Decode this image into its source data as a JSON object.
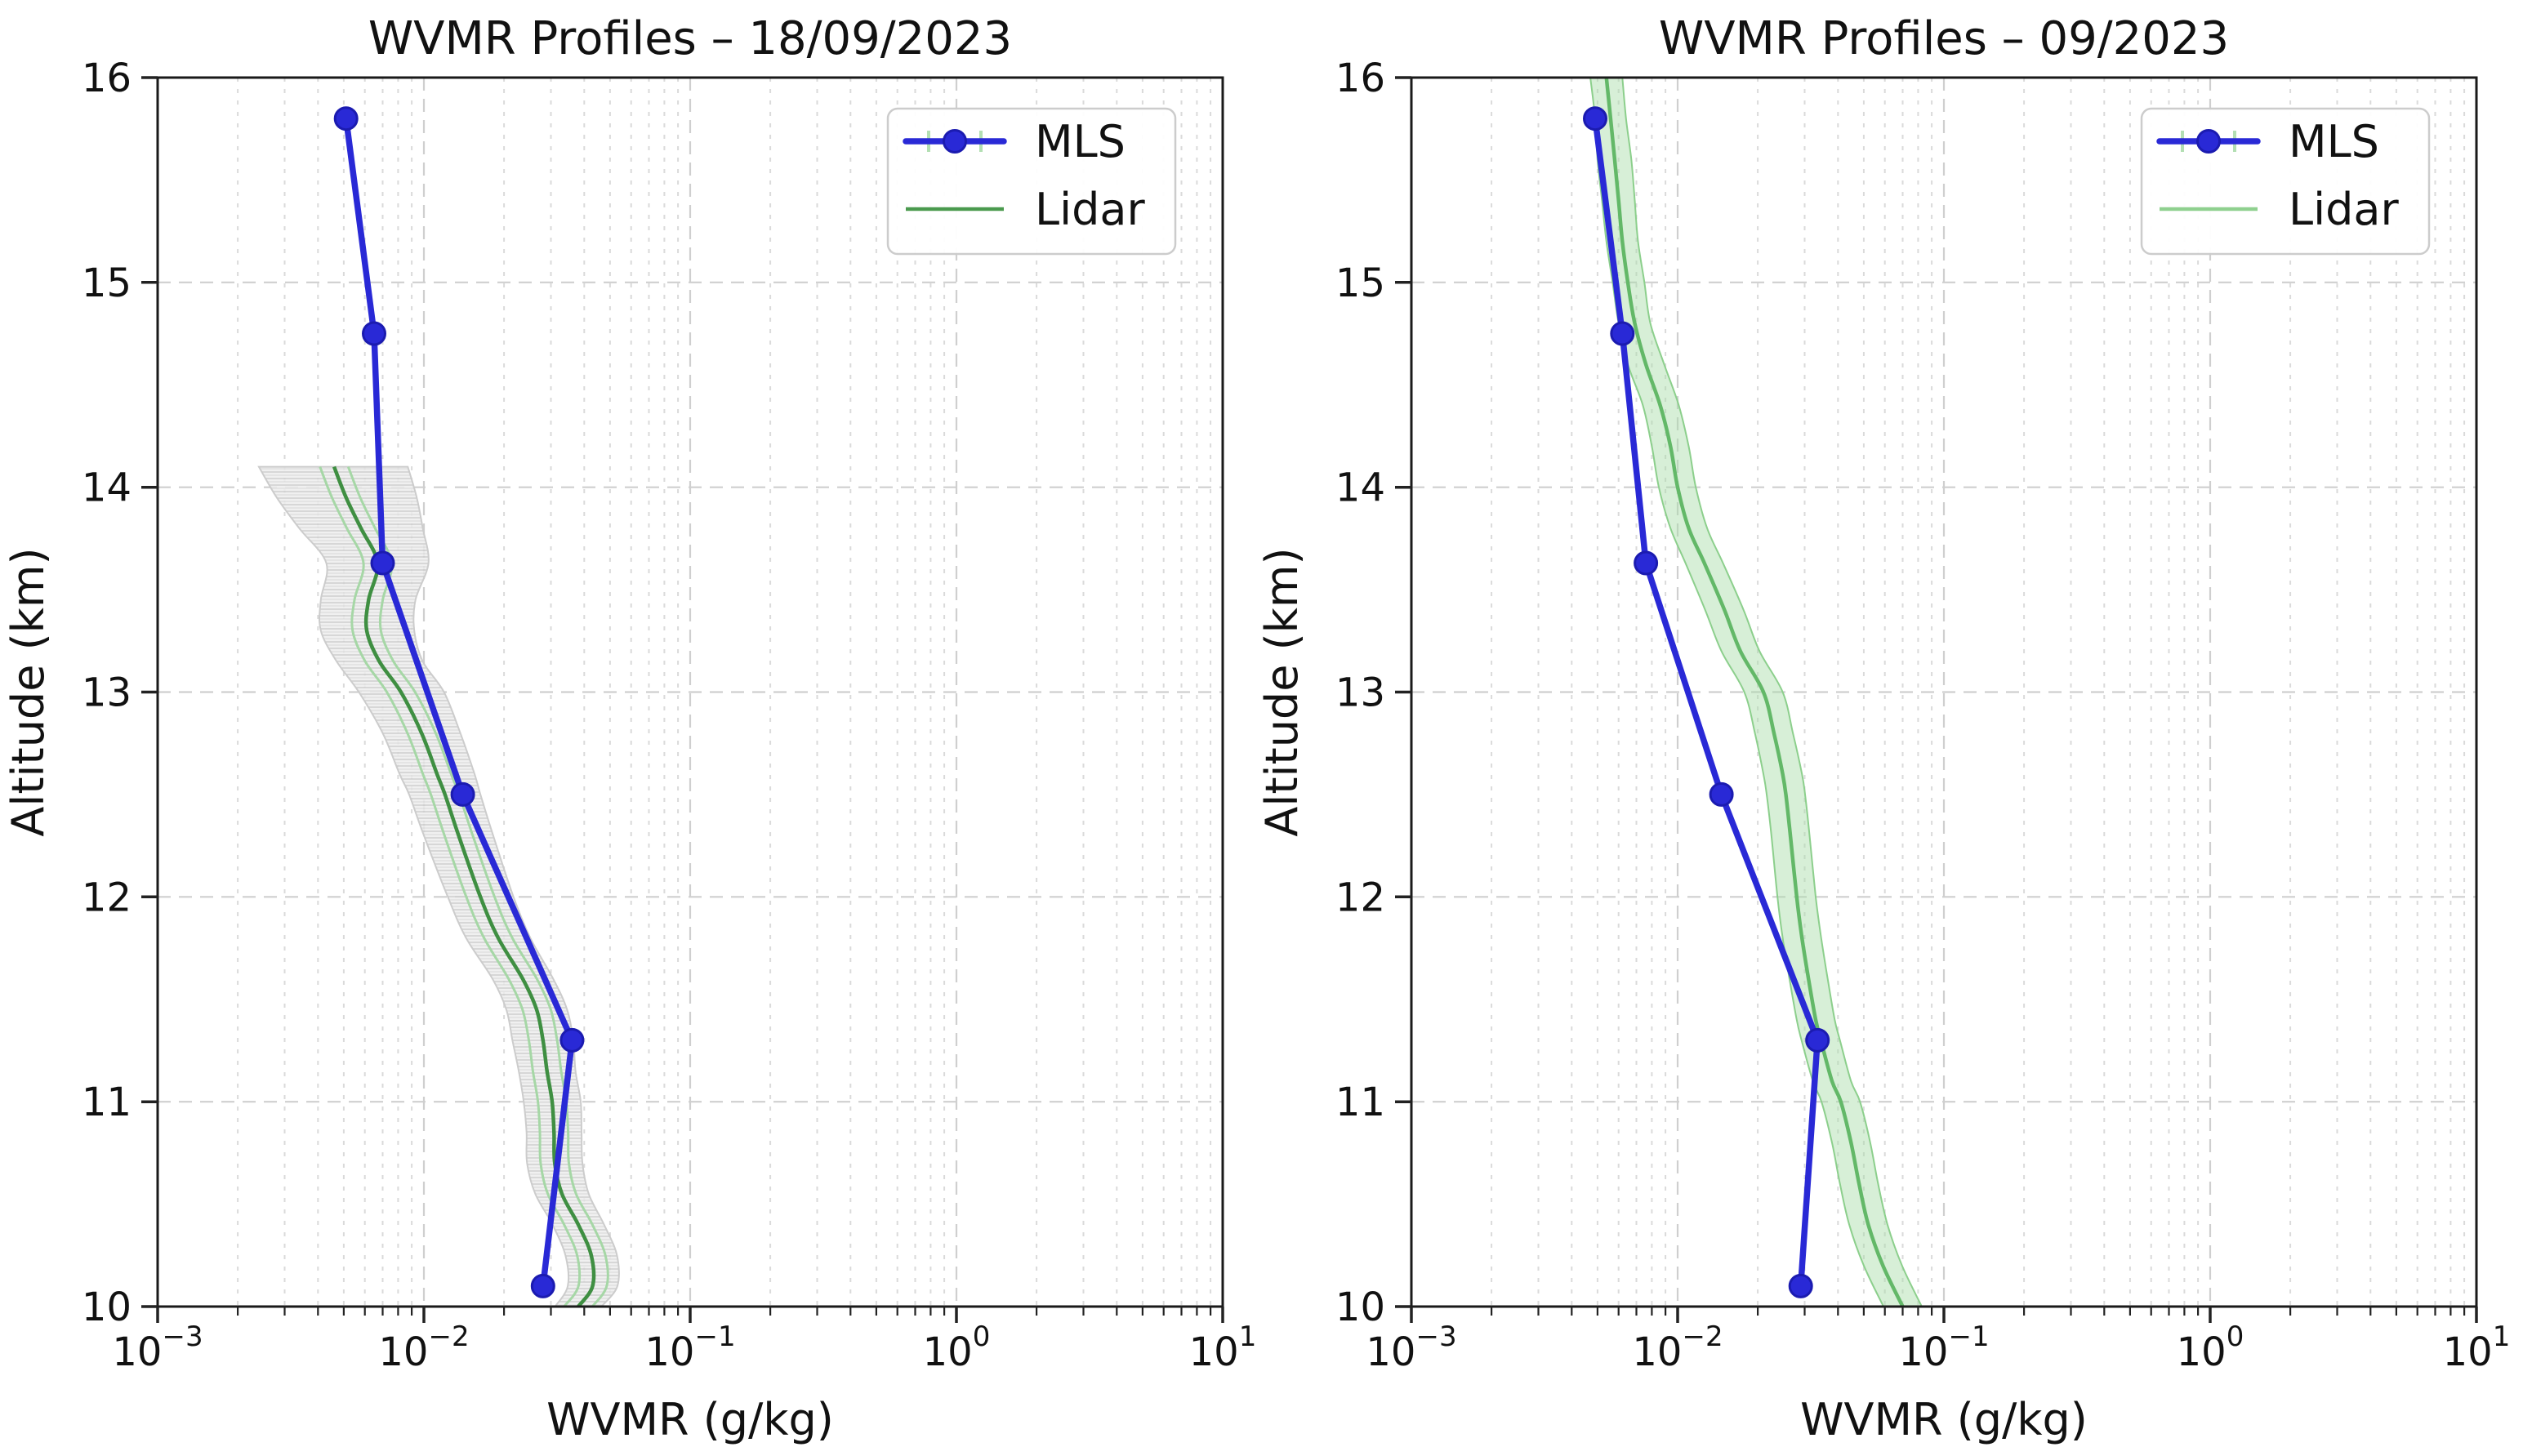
{
  "figure": {
    "background": "#ffffff",
    "text_color": "#111111",
    "spine_color": "#1a1a1a",
    "grid_major_color": "#cfcfcf",
    "grid_minor_color": "#dadada"
  },
  "chart_data": [
    {
      "type": "line",
      "title": "WVMR Profiles – 18/09/2023",
      "xlabel": "WVMR (g/kg)",
      "ylabel": "Altitude (km)",
      "x_scale": "log",
      "xlim": [
        0.001,
        10
      ],
      "ylim": [
        10,
        16
      ],
      "x_tick_exponents": [
        -3,
        -2,
        -1,
        0,
        1
      ],
      "y_ticks": [
        10,
        11,
        12,
        13,
        14,
        15,
        16
      ],
      "grid": true,
      "legend": {
        "position": "upper right",
        "entries": [
          {
            "label": "MLS",
            "sample": "errorbar",
            "color": "#2929d6",
            "cap_color": "#b3dfb3"
          },
          {
            "label": "Lidar",
            "sample": "line",
            "color": "#4a9a4e"
          }
        ]
      },
      "series": [
        {
          "name": "MLS",
          "type": "line+marker",
          "color": "#2929d6",
          "marker": "circle",
          "marker_edge": "#1b1bb0",
          "altitude_km": [
            15.8,
            14.75,
            13.63,
            12.5,
            11.3,
            10.1
          ],
          "wvmr_g_per_kg": [
            0.0051,
            0.0065,
            0.007,
            0.014,
            0.036,
            0.028
          ]
        },
        {
          "name": "Lidar",
          "type": "line+band",
          "color": "#3f8f42",
          "legend_color": "#4a9a4e",
          "inner_band_factor": 1.13,
          "inner_band_color": "#a6d7a6",
          "band_fill": "#ededed",
          "band_edge": "#cccccc",
          "band_hatched": true,
          "band_opacity": 0.85,
          "altitude_km": [
            14.1,
            13.95,
            13.8,
            13.63,
            13.45,
            13.3,
            13.15,
            13.0,
            12.8,
            12.6,
            12.5,
            12.3,
            12.0,
            11.8,
            11.6,
            11.45,
            11.3,
            11.15,
            11.0,
            10.85,
            10.7,
            10.55,
            10.4,
            10.25,
            10.1,
            10.0
          ],
          "wvmr_g_per_kg": [
            0.0046,
            0.0051,
            0.0058,
            0.0067,
            0.0062,
            0.0061,
            0.0068,
            0.0082,
            0.0098,
            0.0112,
            0.012,
            0.0135,
            0.0163,
            0.019,
            0.0235,
            0.0265,
            0.028,
            0.029,
            0.0303,
            0.0308,
            0.031,
            0.033,
            0.038,
            0.0425,
            0.043,
            0.038
          ],
          "band_lower": [
            0.0024,
            0.0028,
            0.0034,
            0.0043,
            0.0041,
            0.0041,
            0.0047,
            0.0057,
            0.007,
            0.0081,
            0.0088,
            0.01,
            0.0123,
            0.0144,
            0.0181,
            0.0204,
            0.0215,
            0.0227,
            0.0237,
            0.0243,
            0.0244,
            0.0262,
            0.0304,
            0.034,
            0.0347,
            0.0311
          ],
          "band_upper": [
            0.0087,
            0.0094,
            0.0099,
            0.0104,
            0.0093,
            0.0092,
            0.0099,
            0.0119,
            0.0137,
            0.0155,
            0.0163,
            0.0182,
            0.0217,
            0.0251,
            0.0306,
            0.0345,
            0.0364,
            0.0371,
            0.0388,
            0.0391,
            0.0394,
            0.0416,
            0.0475,
            0.0531,
            0.0533,
            0.0464
          ]
        }
      ]
    },
    {
      "type": "line",
      "title": "WVMR Profiles – 09/2023",
      "xlabel": "WVMR (g/kg)",
      "ylabel": "Altitude (km)",
      "x_scale": "log",
      "xlim": [
        0.001,
        10
      ],
      "ylim": [
        10,
        16
      ],
      "x_tick_exponents": [
        -3,
        -2,
        -1,
        0,
        1
      ],
      "y_ticks": [
        10,
        11,
        12,
        13,
        14,
        15,
        16
      ],
      "grid": true,
      "legend": {
        "position": "upper right",
        "entries": [
          {
            "label": "MLS",
            "sample": "errorbar",
            "color": "#2929d6",
            "cap_color": "#b3dfb3"
          },
          {
            "label": "Lidar",
            "sample": "line",
            "color": "#8fd08f"
          }
        ]
      },
      "series": [
        {
          "name": "MLS",
          "type": "line+marker",
          "color": "#2929d6",
          "marker": "circle",
          "marker_edge": "#1b1bb0",
          "altitude_km": [
            15.8,
            14.75,
            13.63,
            12.5,
            11.3,
            10.1
          ],
          "wvmr_g_per_kg": [
            0.0049,
            0.0062,
            0.0076,
            0.0146,
            0.0335,
            0.029
          ]
        },
        {
          "name": "Lidar",
          "type": "line+band",
          "color": "#63b868",
          "legend_color": "#8fd08f",
          "band_fill": "#a7dba7",
          "band_edge": "#8ccf8c",
          "band_hatched": false,
          "band_opacity": 0.45,
          "altitude_km": [
            16.0,
            15.8,
            15.6,
            15.4,
            15.2,
            15.0,
            14.8,
            14.6,
            14.4,
            14.2,
            14.0,
            13.8,
            13.63,
            13.4,
            13.2,
            13.0,
            12.8,
            12.6,
            12.5,
            12.3,
            12.0,
            11.8,
            11.6,
            11.4,
            11.3,
            11.1,
            11.0,
            10.8,
            10.6,
            10.4,
            10.2,
            10.0
          ],
          "wvmr_g_per_kg": [
            0.0054,
            0.0056,
            0.0058,
            0.006,
            0.0062,
            0.0065,
            0.0069,
            0.0076,
            0.0086,
            0.0094,
            0.01,
            0.011,
            0.0126,
            0.015,
            0.0172,
            0.021,
            0.023,
            0.0248,
            0.0255,
            0.0265,
            0.028,
            0.0293,
            0.031,
            0.033,
            0.0345,
            0.038,
            0.041,
            0.0448,
            0.048,
            0.052,
            0.059,
            0.07
          ],
          "band_lower": [
            0.0047,
            0.0049,
            0.005,
            0.0052,
            0.0054,
            0.0057,
            0.006,
            0.0065,
            0.0074,
            0.008,
            0.0085,
            0.0094,
            0.0107,
            0.0127,
            0.0146,
            0.0178,
            0.0195,
            0.021,
            0.0216,
            0.0225,
            0.0237,
            0.0248,
            0.0263,
            0.028,
            0.0292,
            0.0322,
            0.0347,
            0.038,
            0.0407,
            0.0441,
            0.05,
            0.0593
          ],
          "band_upper": [
            0.0062,
            0.0064,
            0.0067,
            0.0069,
            0.0071,
            0.0075,
            0.0079,
            0.0089,
            0.0101,
            0.011,
            0.0117,
            0.0129,
            0.0148,
            0.0177,
            0.0203,
            0.0248,
            0.0271,
            0.0293,
            0.0301,
            0.0313,
            0.033,
            0.0346,
            0.0366,
            0.0389,
            0.0407,
            0.0448,
            0.0484,
            0.0529,
            0.0566,
            0.0614,
            0.0696,
            0.0826
          ]
        }
      ]
    }
  ]
}
